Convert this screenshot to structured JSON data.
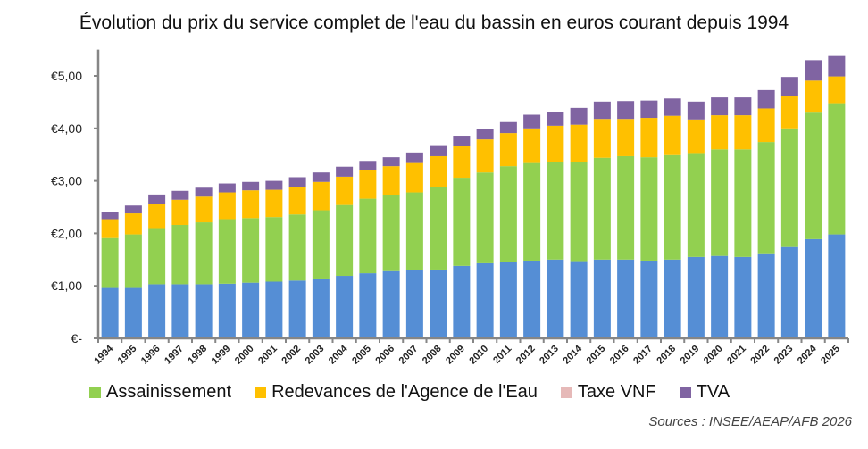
{
  "chart_data": {
    "type": "bar",
    "stacked": true,
    "title": "Évolution du prix du service complet de l'eau du bassin en euros courant depuis 1994",
    "xlabel": "",
    "ylabel": "",
    "ylim": [
      0,
      5.5
    ],
    "grid": false,
    "legend_position": "bottom",
    "yticks": [
      0,
      1,
      2,
      3,
      4,
      5
    ],
    "ytick_labels": [
      "€-",
      "€1,00",
      "€2,00",
      "€3,00",
      "€4,00",
      "€5,00"
    ],
    "categories": [
      "1994",
      "1995",
      "1996",
      "1997",
      "1998",
      "1999",
      "2000",
      "2001",
      "2002",
      "2003",
      "2004",
      "2005",
      "2006",
      "2007",
      "2008",
      "2009",
      "2010",
      "2011",
      "2012",
      "2013",
      "2014",
      "2015",
      "2016",
      "2017",
      "2018",
      "2019",
      "2020",
      "2021",
      "2022",
      "2023",
      "2024",
      "2025"
    ],
    "series": [
      {
        "color": "#558ED5",
        "values": [
          0.96,
          0.96,
          1.03,
          1.03,
          1.03,
          1.04,
          1.06,
          1.08,
          1.1,
          1.14,
          1.19,
          1.24,
          1.28,
          1.3,
          1.31,
          1.38,
          1.43,
          1.46,
          1.48,
          1.5,
          1.47,
          1.5,
          1.5,
          1.48,
          1.5,
          1.55,
          1.57,
          1.55,
          1.62,
          1.74,
          1.89,
          1.98
        ]
      },
      {
        "name": "Assainissement",
        "color": "#92D050",
        "values": [
          0.95,
          1.02,
          1.07,
          1.13,
          1.18,
          1.23,
          1.23,
          1.23,
          1.26,
          1.3,
          1.35,
          1.42,
          1.45,
          1.48,
          1.58,
          1.68,
          1.73,
          1.82,
          1.86,
          1.86,
          1.89,
          1.94,
          1.97,
          1.97,
          1.99,
          1.98,
          2.03,
          2.05,
          2.12,
          2.26,
          2.41,
          2.5
        ]
      },
      {
        "name": "Redevances de l'Agence de l'Eau",
        "color": "#FFC000",
        "values": [
          0.36,
          0.4,
          0.46,
          0.48,
          0.49,
          0.51,
          0.53,
          0.52,
          0.53,
          0.54,
          0.54,
          0.55,
          0.55,
          0.56,
          0.58,
          0.6,
          0.63,
          0.63,
          0.66,
          0.69,
          0.71,
          0.74,
          0.71,
          0.75,
          0.75,
          0.64,
          0.65,
          0.65,
          0.64,
          0.61,
          0.61,
          0.51
        ]
      },
      {
        "name": "Taxe VNF",
        "color": "#E6B9B8",
        "values": [
          0,
          0,
          0,
          0,
          0,
          0,
          0,
          0,
          0,
          0,
          0,
          0,
          0,
          0,
          0,
          0,
          0,
          0,
          0,
          0,
          0,
          0,
          0,
          0,
          0,
          0,
          0,
          0,
          0,
          0,
          0,
          0
        ]
      },
      {
        "name": "TVA",
        "color": "#8064A2",
        "values": [
          0.14,
          0.15,
          0.18,
          0.17,
          0.17,
          0.17,
          0.16,
          0.17,
          0.18,
          0.18,
          0.19,
          0.17,
          0.17,
          0.2,
          0.21,
          0.2,
          0.2,
          0.21,
          0.26,
          0.26,
          0.32,
          0.33,
          0.34,
          0.33,
          0.33,
          0.34,
          0.34,
          0.34,
          0.35,
          0.37,
          0.39,
          0.39
        ]
      }
    ],
    "source": "Sources : INSEE/AEAP/AFB 2026"
  }
}
